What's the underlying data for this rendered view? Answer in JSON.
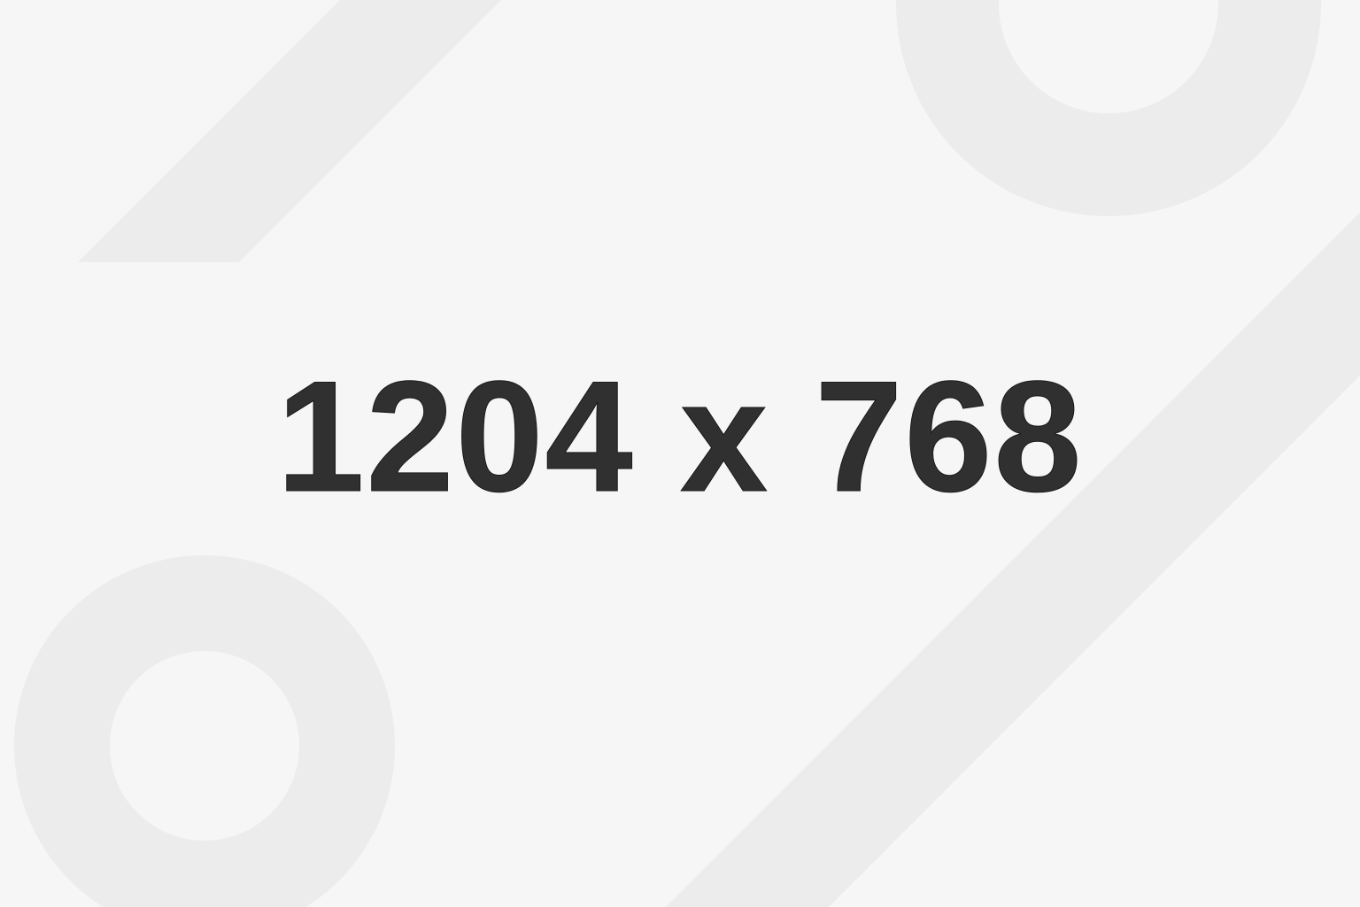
{
  "placeholder": {
    "dimension_text": "1204 x 768"
  },
  "colors": {
    "background": "#f6f6f6",
    "shape": "#ececec",
    "text": "#303030"
  }
}
